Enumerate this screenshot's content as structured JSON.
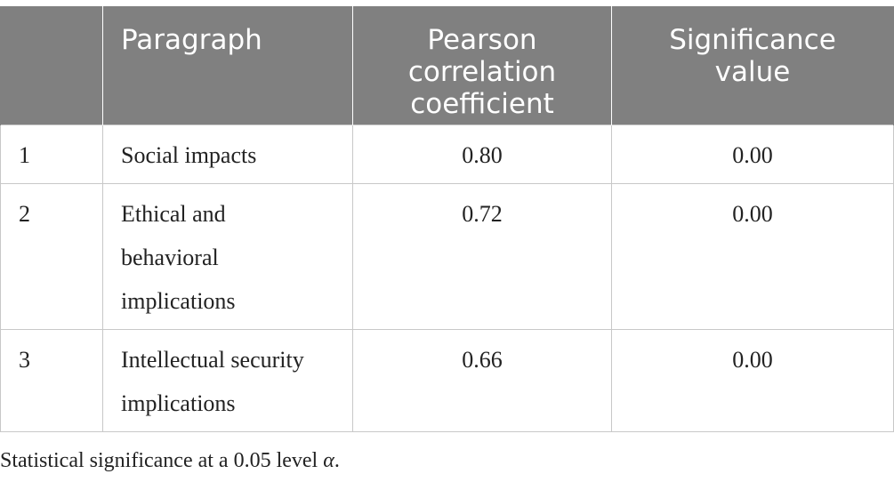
{
  "table": {
    "headers": [
      "",
      "Paragraph",
      "Pearson correlation coefficient",
      "Significance value"
    ],
    "rows": [
      {
        "index": "1",
        "paragraph": "Social impacts",
        "pearson": "0.80",
        "significance": "0.00"
      },
      {
        "index": "2",
        "paragraph": "Ethical and behavioral implications",
        "pearson": "0.72",
        "significance": "0.00"
      },
      {
        "index": "3",
        "paragraph": "Intellectual security implications",
        "pearson": "0.66",
        "significance": "0.00"
      }
    ]
  },
  "footnote": {
    "text": "Statistical significance at a 0.05 level ",
    "symbol": "α",
    "end": "."
  },
  "colors": {
    "header_bg": "#808080",
    "header_text": "#ffffff",
    "grid_line": "#c8c8c8"
  }
}
